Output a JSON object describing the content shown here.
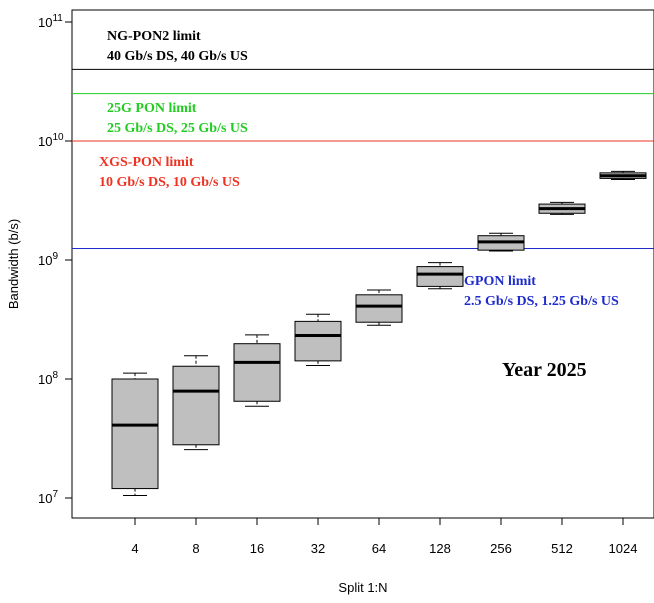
{
  "chart_data": {
    "type": "box",
    "xlabel": "Split 1:N",
    "ylabel": "Bandwidth (b/s)",
    "yscale": "log",
    "ylim": [
      7000000,
      130000000000
    ],
    "yticks": [
      {
        "value": 10000000,
        "base": "10",
        "exp": "7"
      },
      {
        "value": 100000000,
        "base": "10",
        "exp": "8"
      },
      {
        "value": 1000000000,
        "base": "10",
        "exp": "9"
      },
      {
        "value": 10000000000,
        "base": "10",
        "exp": "10"
      },
      {
        "value": 100000000000,
        "base": "10",
        "exp": "11"
      }
    ],
    "categories": [
      "4",
      "8",
      "16",
      "32",
      "64",
      "128",
      "256",
      "512",
      "1024"
    ],
    "boxes": [
      {
        "min": 10500000,
        "q1": 12000000,
        "median": 41000000,
        "q3": 100000000,
        "max": 112000000
      },
      {
        "min": 25500000,
        "q1": 28000000,
        "median": 79000000,
        "q3": 128000000,
        "max": 157000000
      },
      {
        "min": 59000000,
        "q1": 65000000,
        "median": 138000000,
        "q3": 198000000,
        "max": 235000000
      },
      {
        "min": 130000000,
        "q1": 142000000,
        "median": 232000000,
        "q3": 305000000,
        "max": 350000000
      },
      {
        "min": 283000000,
        "q1": 300000000,
        "median": 410000000,
        "q3": 510000000,
        "max": 560000000
      },
      {
        "min": 573000000,
        "q1": 600000000,
        "median": 760000000,
        "q3": 880000000,
        "max": 950000000
      },
      {
        "min": 1190000000,
        "q1": 1210000000,
        "median": 1420000000,
        "q3": 1600000000,
        "max": 1680000000
      },
      {
        "min": 2420000000,
        "q1": 2470000000,
        "median": 2700000000,
        "q3": 2950000000,
        "max": 3050000000
      },
      {
        "min": 4750000000,
        "q1": 4850000000,
        "median": 5100000000,
        "q3": 5400000000,
        "max": 5550000000
      }
    ],
    "reference_lines": [
      {
        "value": 40000000000,
        "color": "#000000",
        "line1": "NG-PON2 limit",
        "line2": "40 Gb/s DS, 40 Gb/s US"
      },
      {
        "value": 25000000000,
        "color": "#22cc22",
        "line1": "25G PON limit",
        "line2": "25 Gb/s DS, 25 Gb/s US"
      },
      {
        "value": 10000000000,
        "color": "#ee3322",
        "line1": "XGS-PON limit",
        "line2": "10 Gb/s DS, 10 Gb/s US"
      },
      {
        "value": 1250000000,
        "color": "#1e2ccc",
        "line1": "GPON limit",
        "line2": "2.5 Gb/s DS, 1.25 Gb/s US"
      }
    ],
    "annotation": "Year 2025",
    "box_color": "#bfbfbf"
  }
}
